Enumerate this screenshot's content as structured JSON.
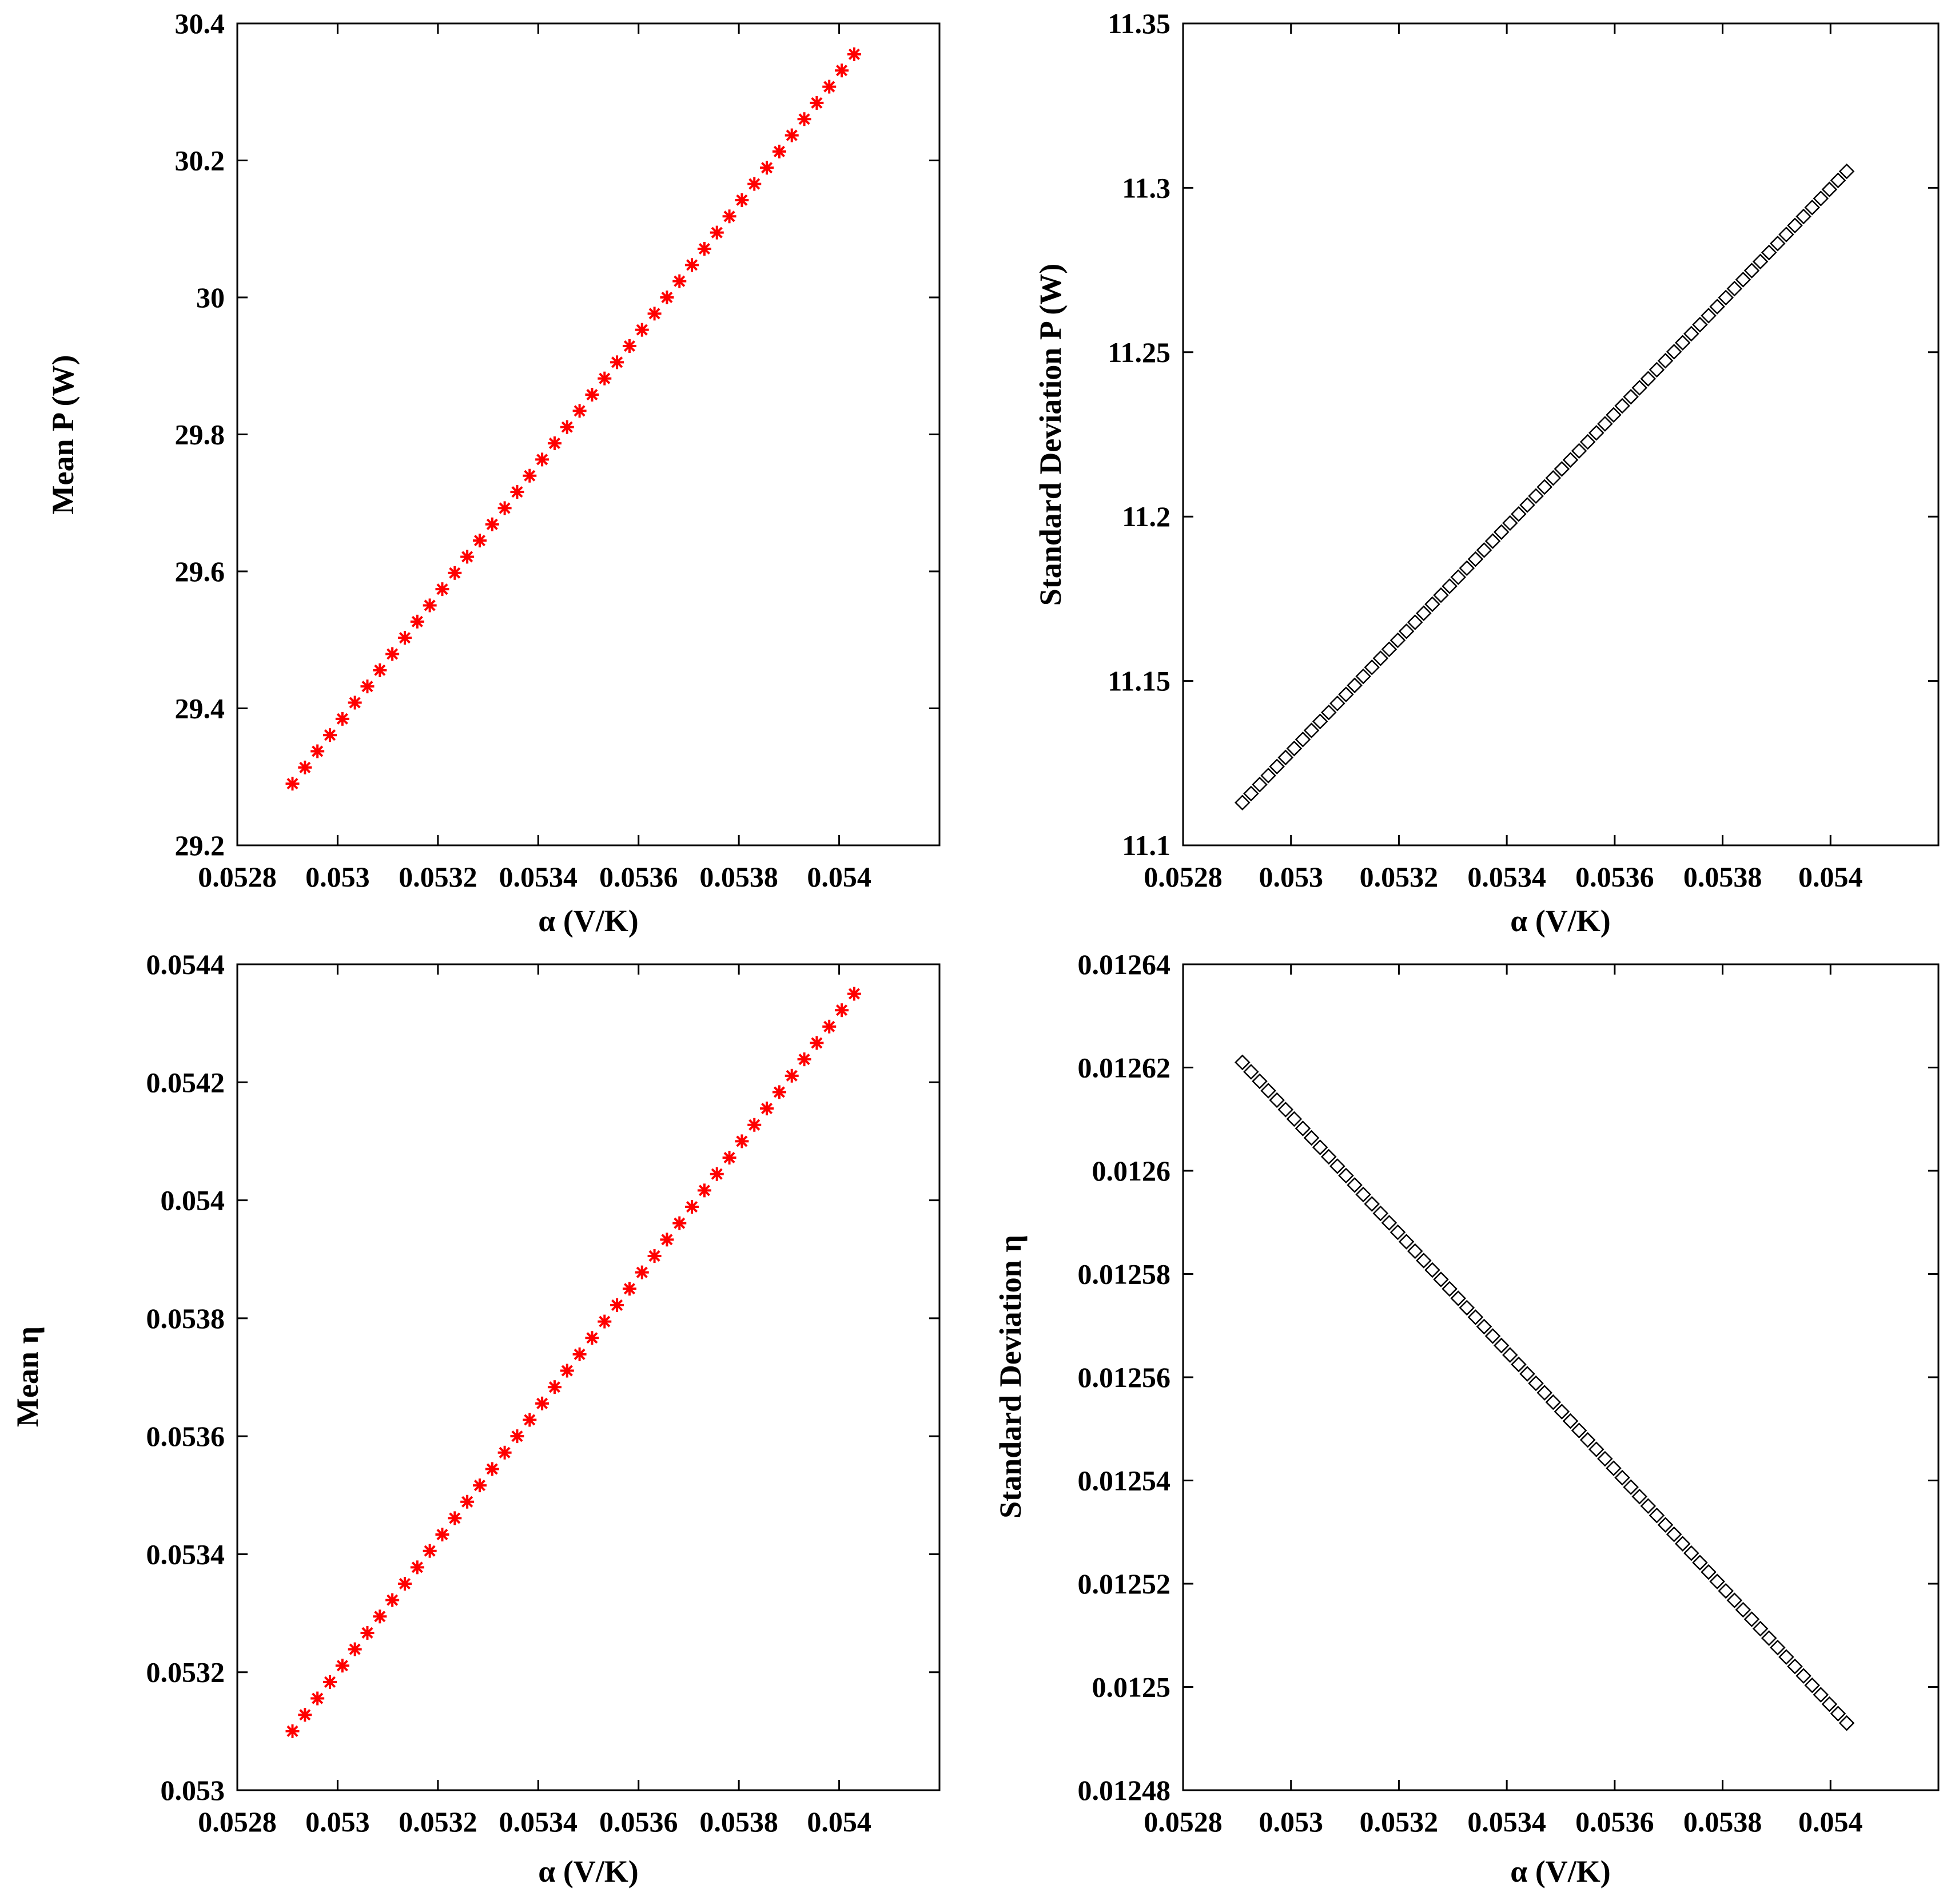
{
  "chart_data": [
    {
      "type": "scatter",
      "xlabel": "α (V/K)",
      "ylabel": "Mean P (W)",
      "xlim": [
        0.0528,
        0.0542
      ],
      "ylim": [
        29.2,
        30.4
      ],
      "xticks": [
        "0.0528",
        "0.053",
        "0.0532",
        "0.0534",
        "0.0536",
        "0.0538",
        "0.054"
      ],
      "yticks": [
        "29.2",
        "29.4",
        "29.6",
        "29.8",
        "30",
        "30.2",
        "30.4"
      ],
      "marker": "asterisk",
      "color": "#ff0000",
      "series": [
        {
          "x_start": 0.05291,
          "x_end": 0.05403,
          "y_start": 29.29,
          "y_end": 30.355,
          "count": 46
        }
      ]
    },
    {
      "type": "scatter",
      "xlabel": "α (V/K)",
      "ylabel": "Standard Deviation P (W)",
      "xlim": [
        0.0528,
        0.0542
      ],
      "ylim": [
        11.1,
        11.35
      ],
      "xticks": [
        "0.0528",
        "0.053",
        "0.0532",
        "0.0534",
        "0.0536",
        "0.0538",
        "0.054"
      ],
      "yticks": [
        "11.1",
        "11.15",
        "11.2",
        "11.25",
        "11.3",
        "11.35"
      ],
      "marker": "diamond",
      "color": "#000000",
      "series": [
        {
          "x_start": 0.05291,
          "x_end": 0.05403,
          "y_start": 11.113,
          "y_end": 11.305,
          "count": 71
        }
      ]
    },
    {
      "type": "scatter",
      "xlabel": "α (V/K)",
      "ylabel": "Mean η",
      "xlim": [
        0.0528,
        0.0542
      ],
      "ylim": [
        0.053,
        0.0544
      ],
      "xticks": [
        "0.0528",
        "0.053",
        "0.0532",
        "0.0534",
        "0.0536",
        "0.0538",
        "0.054"
      ],
      "yticks": [
        "0.053",
        "0.0532",
        "0.0534",
        "0.0536",
        "0.0538",
        "0.054",
        "0.0542",
        "0.0544"
      ],
      "marker": "asterisk",
      "color": "#ff0000",
      "series": [
        {
          "x_start": 0.05291,
          "x_end": 0.05403,
          "y_start": 0.0531,
          "y_end": 0.05435,
          "count": 46
        }
      ]
    },
    {
      "type": "scatter",
      "xlabel": "α (V/K)",
      "ylabel": "Standard Deviation η",
      "xlim": [
        0.0528,
        0.0542
      ],
      "ylim": [
        0.01248,
        0.01264
      ],
      "xticks": [
        "0.0528",
        "0.053",
        "0.0532",
        "0.0534",
        "0.0536",
        "0.0538",
        "0.054"
      ],
      "yticks": [
        "0.01248",
        "0.0125",
        "0.01252",
        "0.01254",
        "0.01256",
        "0.01258",
        "0.0126",
        "0.01262",
        "0.01264"
      ],
      "marker": "diamond",
      "color": "#000000",
      "series": [
        {
          "x_start": 0.05291,
          "x_end": 0.05403,
          "y_start": 0.012621,
          "y_end": 0.012493,
          "count": 71
        }
      ]
    }
  ]
}
